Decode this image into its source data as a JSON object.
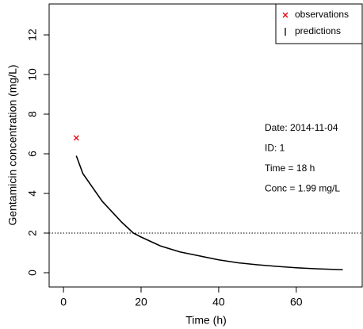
{
  "chart_data": {
    "type": "line",
    "xlabel": "Time (h)",
    "ylabel": "Gentamicin concentration (mg/L)",
    "xlim": [
      -3.7,
      77
    ],
    "ylim": [
      -0.72,
      13.56
    ],
    "xticks": [
      0,
      20,
      40,
      60
    ],
    "yticks": [
      0,
      2,
      4,
      6,
      8,
      10,
      12
    ],
    "hline": 2,
    "legend": "top-right",
    "series": [
      {
        "name": "observations",
        "type": "scatter",
        "color": "#e8000b",
        "x": [
          3.3
        ],
        "values": [
          6.8
        ]
      },
      {
        "name": "predictions",
        "type": "line",
        "color": "#000000",
        "x": [
          3.3,
          5,
          10,
          15,
          18,
          20,
          25,
          30,
          35,
          40,
          45,
          50,
          55,
          60,
          65,
          72
        ],
        "values": [
          5.9,
          5.0,
          3.6,
          2.55,
          2.0,
          1.8,
          1.35,
          1.05,
          0.85,
          0.65,
          0.5,
          0.4,
          0.32,
          0.25,
          0.2,
          0.15
        ]
      }
    ],
    "annotations": [
      "Date: 2014-11-04",
      "ID: 1",
      "Time = 18 h",
      "Conc = 1.99 mg/L"
    ]
  }
}
